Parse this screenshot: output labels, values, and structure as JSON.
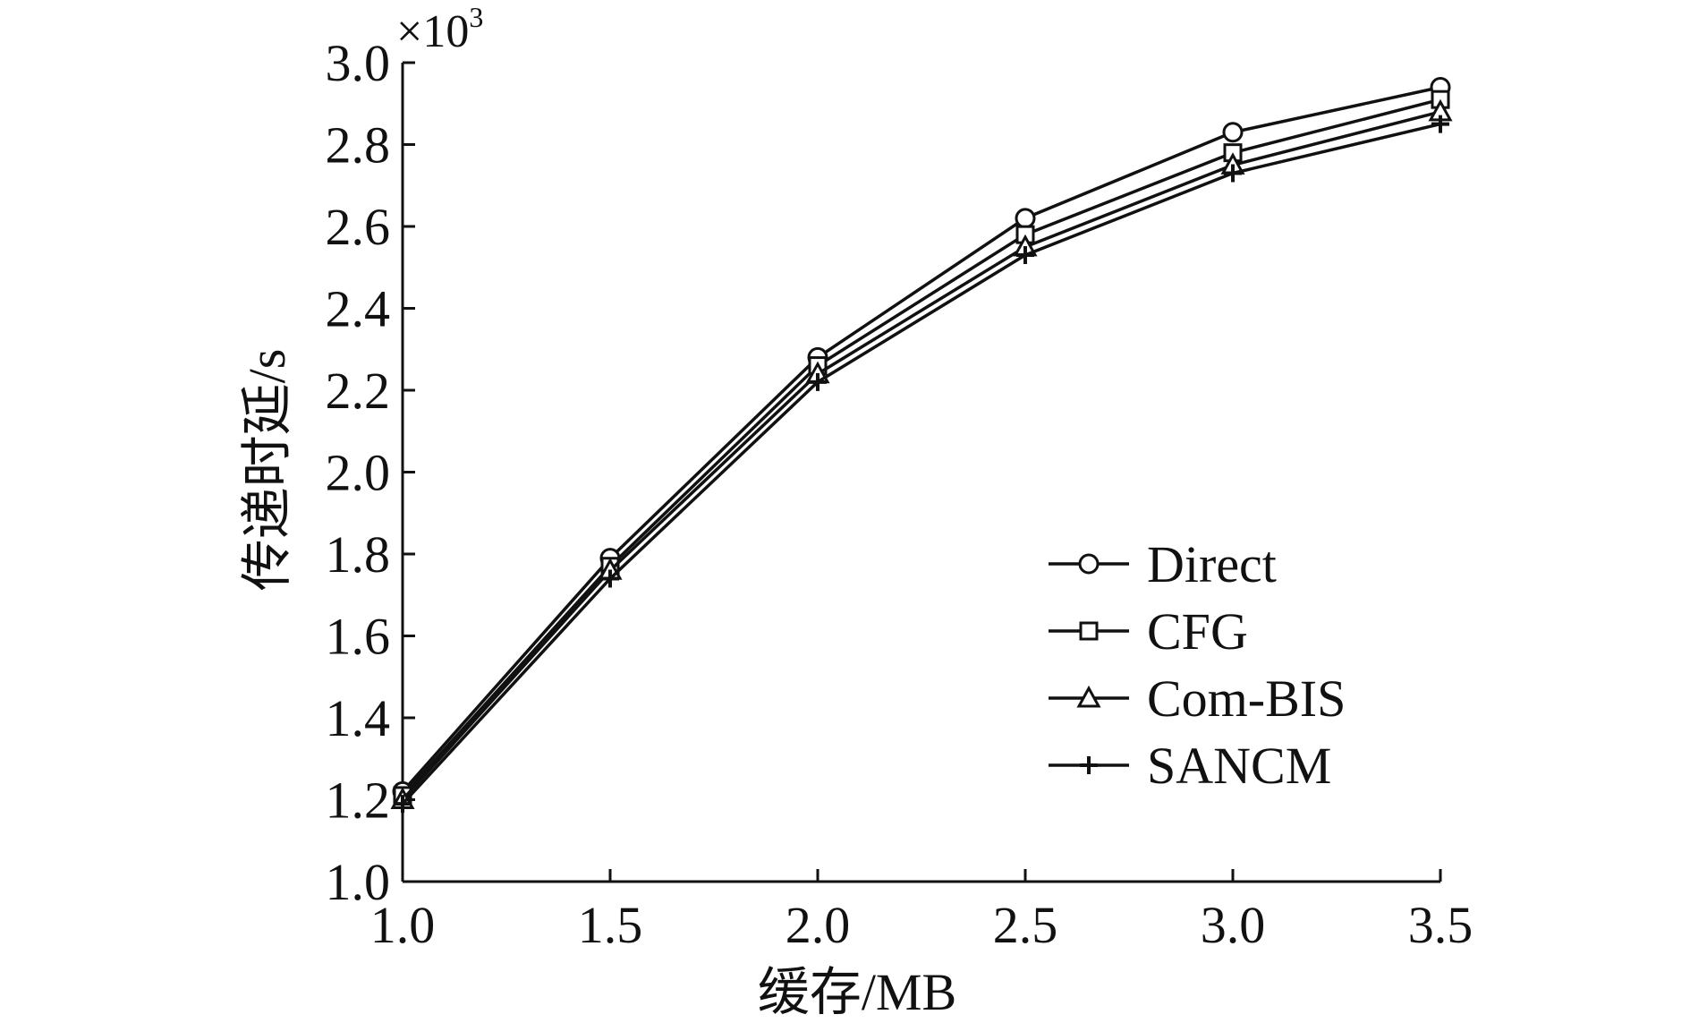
{
  "chart_data": {
    "type": "line",
    "xlabel": "缓存/MB",
    "ylabel": "传递时延/s",
    "y_multiplier": {
      "base": "×10",
      "exponent": "3"
    },
    "xlim": [
      1.0,
      3.5
    ],
    "ylim": [
      1.0,
      3.0
    ],
    "x_ticks": [
      "1.0",
      "1.5",
      "2.0",
      "2.5",
      "3.0",
      "3.5"
    ],
    "y_ticks": [
      "1.0",
      "1.2",
      "1.4",
      "1.6",
      "1.8",
      "2.0",
      "2.2",
      "2.4",
      "2.6",
      "2.8",
      "3.0"
    ],
    "x": [
      1.0,
      1.5,
      2.0,
      2.5,
      3.0,
      3.5
    ],
    "series": [
      {
        "name": "Direct",
        "marker": "circle",
        "values": [
          1.22,
          1.79,
          2.28,
          2.62,
          2.83,
          2.94
        ]
      },
      {
        "name": "CFG",
        "marker": "square",
        "values": [
          1.21,
          1.77,
          2.26,
          2.58,
          2.78,
          2.91
        ]
      },
      {
        "name": "Com-BIS",
        "marker": "triangle",
        "values": [
          1.2,
          1.76,
          2.24,
          2.55,
          2.75,
          2.88
        ]
      },
      {
        "name": "SANCM",
        "marker": "plus",
        "values": [
          1.19,
          1.74,
          2.22,
          2.53,
          2.73,
          2.85
        ]
      }
    ],
    "grid": false,
    "legend_position": "right",
    "line_color": "#111111"
  }
}
